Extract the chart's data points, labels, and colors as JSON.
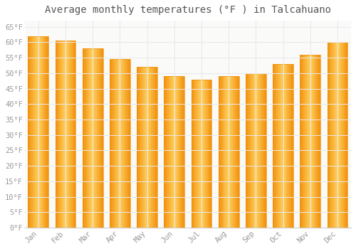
{
  "title": "Average monthly temperatures (°F ) in Talcahuano",
  "months": [
    "Jan",
    "Feb",
    "Mar",
    "Apr",
    "May",
    "Jun",
    "Jul",
    "Aug",
    "Sep",
    "Oct",
    "Nov",
    "Dec"
  ],
  "values": [
    62,
    60.5,
    58,
    54.5,
    52,
    49,
    48,
    49,
    50,
    53,
    56,
    60
  ],
  "bar_color_center": "#FFD060",
  "bar_color_edge": "#F0900A",
  "background_color": "#FFFFFF",
  "plot_bg_color": "#FAFAF8",
  "ylim": [
    0,
    67
  ],
  "yticks": [
    0,
    5,
    10,
    15,
    20,
    25,
    30,
    35,
    40,
    45,
    50,
    55,
    60,
    65
  ],
  "grid_color": "#E8E8EE",
  "title_fontsize": 10,
  "tick_fontsize": 7.5,
  "tick_font_color": "#999999"
}
